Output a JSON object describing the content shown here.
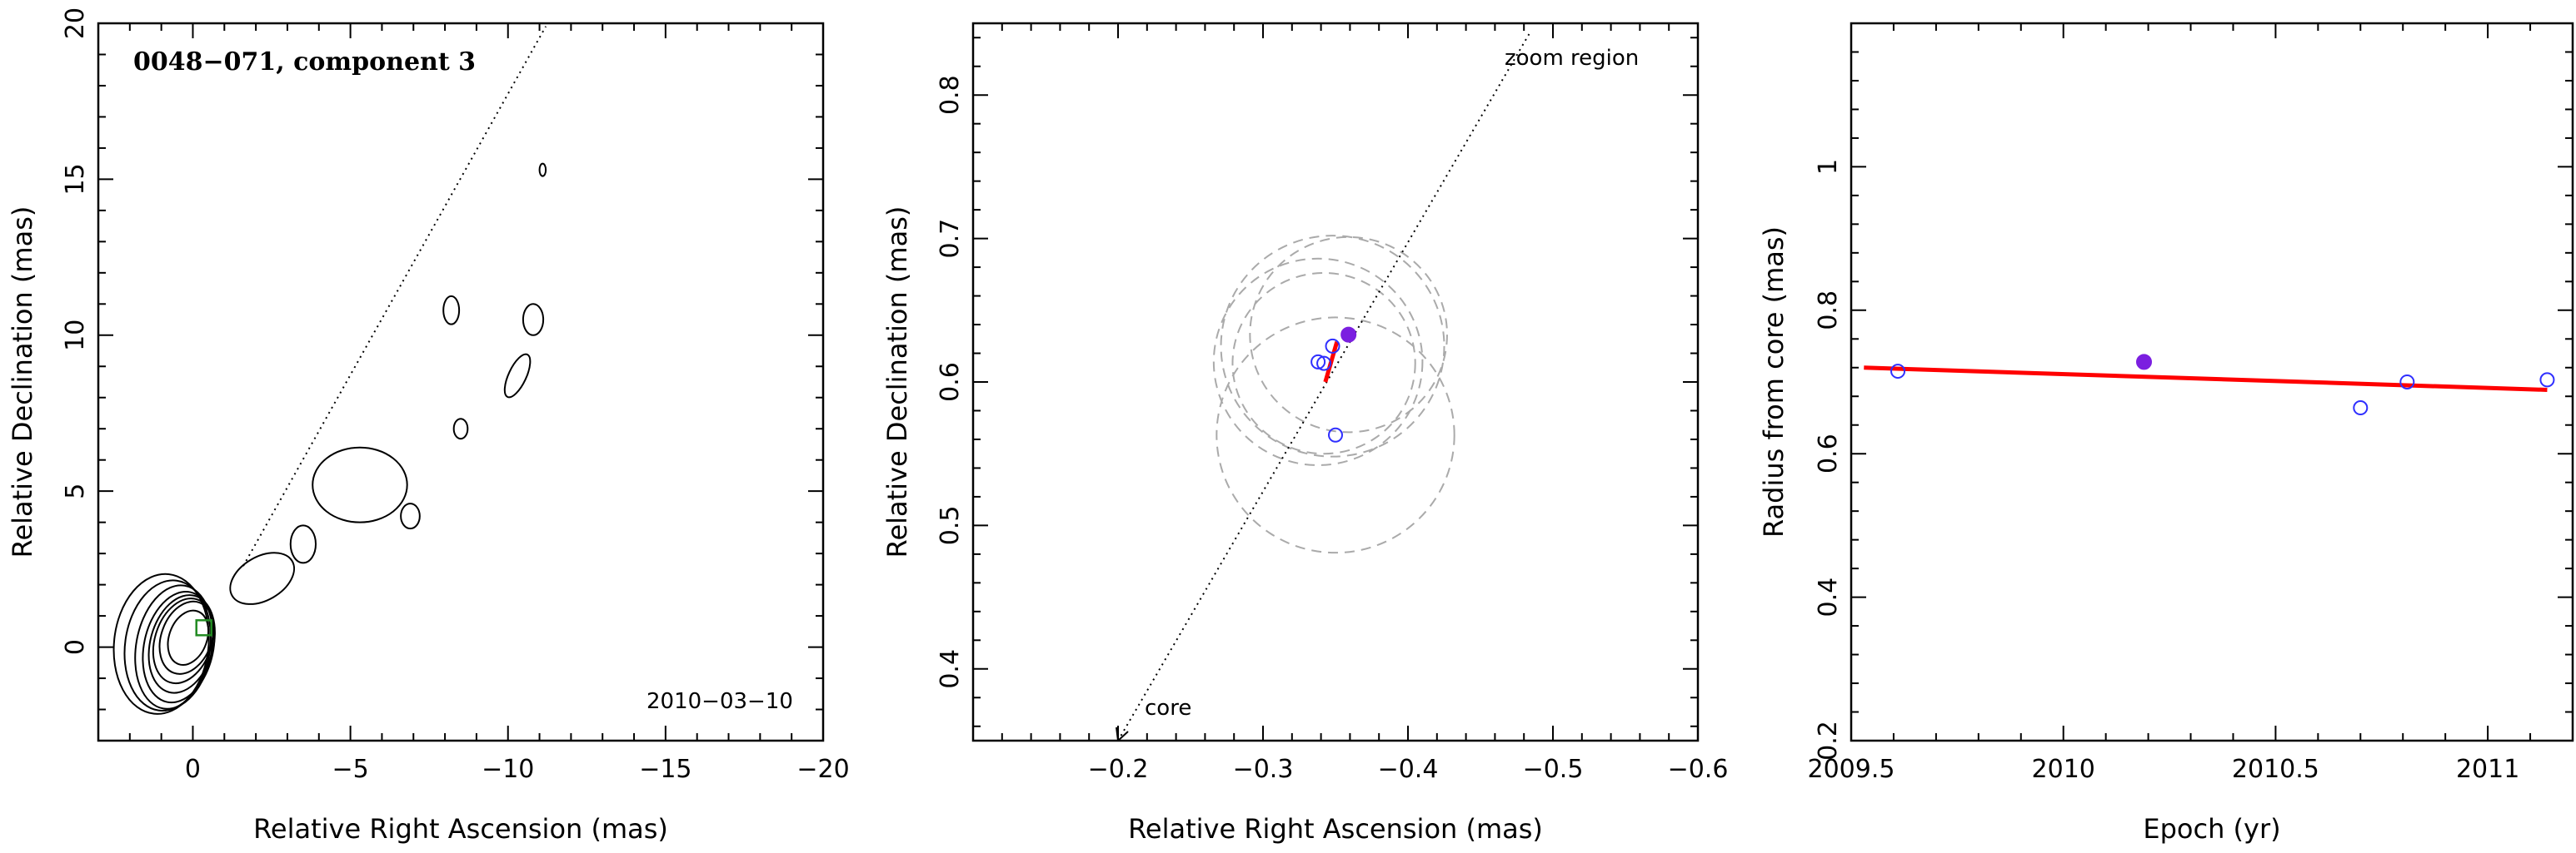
{
  "chart_data": [
    {
      "type": "contour",
      "title": "0048−071, component 3",
      "epoch_label": "2010−03−10",
      "xlabel": "Relative Right Ascension (mas)",
      "ylabel": "Relative Declination (mas)",
      "xlim": [
        3,
        -20
      ],
      "ylim": [
        -3,
        20
      ],
      "xticks": [
        0,
        -5,
        -10,
        -15,
        -20
      ],
      "xtick_labels": [
        "0",
        "−5",
        "−10",
        "−15",
        "−20"
      ],
      "yticks": [
        0,
        5,
        10,
        15,
        20
      ],
      "ytick_labels": [
        "0",
        "5",
        "10",
        "15",
        "20"
      ],
      "core_contours": [
        {
          "cx": 0.15,
          "cy": 0.3,
          "rx": 0.6,
          "ry": 0.9,
          "angle": 20
        },
        {
          "cx": 0.2,
          "cy": 0.3,
          "rx": 0.8,
          "ry": 1.2,
          "angle": 20
        },
        {
          "cx": 0.3,
          "cy": 0.2,
          "rx": 0.9,
          "ry": 1.4,
          "angle": 18
        },
        {
          "cx": 0.35,
          "cy": 0.1,
          "rx": 1.0,
          "ry": 1.6,
          "angle": 15
        },
        {
          "cx": 0.45,
          "cy": 0.0,
          "rx": 1.1,
          "ry": 1.8,
          "angle": 12
        },
        {
          "cx": 0.6,
          "cy": 0.0,
          "rx": 1.2,
          "ry": 2.0,
          "angle": 10
        },
        {
          "cx": 0.8,
          "cy": 0.05,
          "rx": 1.35,
          "ry": 2.1,
          "angle": 8
        },
        {
          "cx": 1.0,
          "cy": 0.1,
          "rx": 1.5,
          "ry": 2.25,
          "angle": 6
        }
      ],
      "jet_contours": [
        {
          "cx": -2.2,
          "cy": 2.2,
          "rx": 1.1,
          "ry": 0.7,
          "angle": -30
        },
        {
          "cx": -3.5,
          "cy": 3.3,
          "rx": 0.4,
          "ry": 0.6,
          "angle": 0
        },
        {
          "cx": -5.3,
          "cy": 5.2,
          "rx": 1.5,
          "ry": 1.2,
          "angle": 0
        },
        {
          "cx": -6.9,
          "cy": 4.2,
          "rx": 0.3,
          "ry": 0.4,
          "angle": 0
        },
        {
          "cx": -8.5,
          "cy": 7.0,
          "rx": 0.22,
          "ry": 0.32,
          "angle": 0
        },
        {
          "cx": -8.2,
          "cy": 10.8,
          "rx": 0.25,
          "ry": 0.45,
          "angle": 0
        },
        {
          "cx": -10.3,
          "cy": 8.7,
          "rx": 0.28,
          "ry": 0.75,
          "angle": 25
        },
        {
          "cx": -10.8,
          "cy": 10.5,
          "rx": 0.32,
          "ry": 0.5,
          "angle": 0
        },
        {
          "cx": -11.1,
          "cy": 15.3,
          "rx": 0.1,
          "ry": 0.2,
          "angle": 0
        }
      ],
      "component_marker": {
        "x": -0.35,
        "y": 0.62,
        "color": "#228b22"
      },
      "direction_line": {
        "x": [
          -1.6,
          -11.2
        ],
        "y": [
          2.6,
          19.9
        ]
      }
    },
    {
      "type": "scatter",
      "zoom_label": "zoom region",
      "core_label": "core",
      "xlabel": "Relative Right Ascension (mas)",
      "ylabel": "Relative Declination (mas)",
      "xlim": [
        -0.1,
        -0.6
      ],
      "ylim": [
        0.35,
        0.85
      ],
      "xticks": [
        -0.2,
        -0.3,
        -0.4,
        -0.5,
        -0.6
      ],
      "xtick_labels": [
        "−0.2",
        "−0.3",
        "−0.4",
        "−0.5",
        "−0.6"
      ],
      "yticks": [
        0.4,
        0.5,
        0.6,
        0.7,
        0.8
      ],
      "ytick_labels": [
        "0.4",
        "0.5",
        "0.6",
        "0.7",
        "0.8"
      ],
      "open_points": [
        {
          "x": -0.342,
          "y": 0.613
        },
        {
          "x": -0.338,
          "y": 0.614
        },
        {
          "x": -0.348,
          "y": 0.625
        },
        {
          "x": -0.35,
          "y": 0.563
        }
      ],
      "filled_point": {
        "x": -0.359,
        "y": 0.633
      },
      "uncertainty_circles": [
        {
          "cx": -0.342,
          "cy": 0.613,
          "r": 0.063
        },
        {
          "cx": -0.338,
          "cy": 0.614,
          "r": 0.072
        },
        {
          "cx": -0.348,
          "cy": 0.625,
          "r": 0.077
        },
        {
          "cx": -0.35,
          "cy": 0.563,
          "r": 0.082
        },
        {
          "cx": -0.359,
          "cy": 0.633,
          "r": 0.068
        }
      ],
      "fit_segment": {
        "x": [
          -0.343,
          -0.351
        ],
        "y": [
          0.6,
          0.628
        ]
      },
      "direction_line": {
        "x": [
          -0.2,
          -0.485
        ],
        "y": [
          0.35,
          0.845
        ]
      },
      "colors": {
        "open": "#2f2fff",
        "filled": "#7b1fe0",
        "fit": "#ff0000",
        "circle": "#aaaaaa"
      }
    },
    {
      "type": "scatter",
      "xlabel": "Epoch (yr)",
      "ylabel": "Radius from core (mas)",
      "xlim": [
        2009.5,
        2011.2
      ],
      "ylim": [
        0.2,
        1.2
      ],
      "xticks": [
        2009.5,
        2010,
        2010.5,
        2011
      ],
      "xtick_labels": [
        "2009.5",
        "2010",
        "2010.5",
        "2011"
      ],
      "yticks": [
        0.2,
        0.4,
        0.6,
        0.8,
        1
      ],
      "ytick_labels": [
        "0.2",
        "0.4",
        "0.6",
        "0.8",
        "1"
      ],
      "open_points": [
        {
          "x": 2009.61,
          "y": 0.715
        },
        {
          "x": 2010.7,
          "y": 0.664
        },
        {
          "x": 2010.81,
          "y": 0.7
        },
        {
          "x": 2011.14,
          "y": 0.703
        }
      ],
      "filled_point": {
        "x": 2010.19,
        "y": 0.728
      },
      "fit_line": {
        "x": [
          2009.53,
          2011.14
        ],
        "y": [
          0.72,
          0.689
        ]
      },
      "colors": {
        "open": "#2f2fff",
        "filled": "#7b1fe0",
        "fit": "#ff0000"
      }
    }
  ]
}
